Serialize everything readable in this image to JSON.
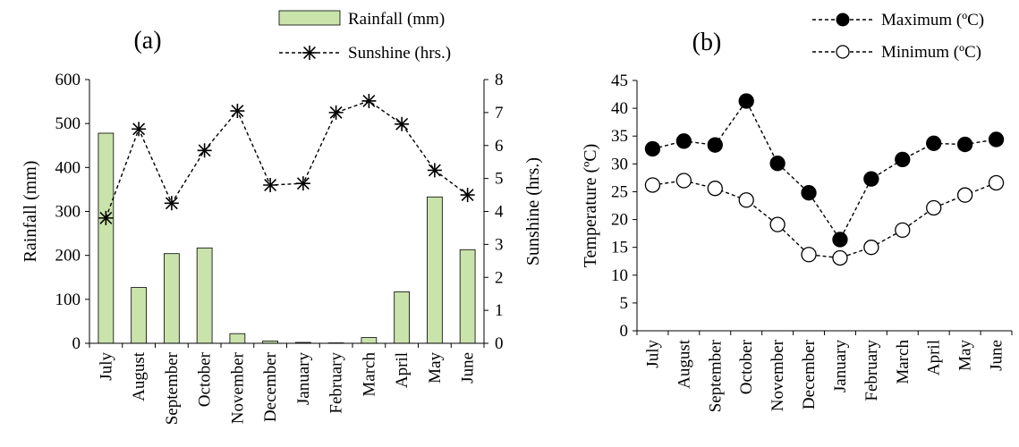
{
  "chart_data": [
    {
      "panel_label": "(a)",
      "type": "bar+line",
      "categories": [
        "July",
        "August",
        "September",
        "October",
        "November",
        "December",
        "January",
        "February",
        "March",
        "April",
        "May",
        "June"
      ],
      "series": [
        {
          "name": "Rainfall (mm)",
          "type": "bar",
          "axis": "left",
          "color": "#c9e3ab",
          "values": [
            478,
            127,
            204,
            217,
            22,
            5,
            2,
            1,
            13,
            117,
            333,
            213
          ]
        },
        {
          "name": "Sunshine (hrs.)",
          "type": "line",
          "axis": "right",
          "marker": "star",
          "values": [
            3.8,
            6.5,
            4.25,
            5.85,
            7.05,
            4.8,
            4.85,
            7.0,
            7.35,
            6.65,
            5.25,
            4.5
          ]
        }
      ],
      "ylabel": "Rainfall (mm)",
      "ylim": [
        0,
        600
      ],
      "yticks": [
        0,
        100,
        200,
        300,
        400,
        500,
        600
      ],
      "y2label": "Sunshine (hrs.)",
      "y2lim": [
        0,
        8
      ],
      "y2ticks": [
        0,
        1,
        2,
        3,
        4,
        5,
        6,
        7,
        8
      ],
      "legend": "top-right"
    },
    {
      "panel_label": "(b)",
      "type": "line",
      "categories": [
        "July",
        "August",
        "September",
        "October",
        "November",
        "December",
        "January",
        "February",
        "March",
        "April",
        "May",
        "June"
      ],
      "series": [
        {
          "name": "Maximum (ºC)",
          "marker": "filled-circle",
          "values": [
            32.7,
            34.1,
            33.4,
            41.3,
            30.1,
            24.8,
            16.4,
            27.3,
            30.8,
            33.7,
            33.5,
            34.4
          ]
        },
        {
          "name": "Minimum (ºC)",
          "marker": "open-circle",
          "values": [
            26.2,
            27.0,
            25.6,
            23.5,
            19.1,
            13.7,
            13.1,
            15.0,
            18.1,
            22.1,
            24.4,
            26.6
          ]
        }
      ],
      "ylabel": "Temperature (ºC)",
      "ylim": [
        0,
        45
      ],
      "yticks": [
        0,
        5,
        10,
        15,
        20,
        25,
        30,
        35,
        40,
        45
      ],
      "legend": "top-right"
    }
  ]
}
